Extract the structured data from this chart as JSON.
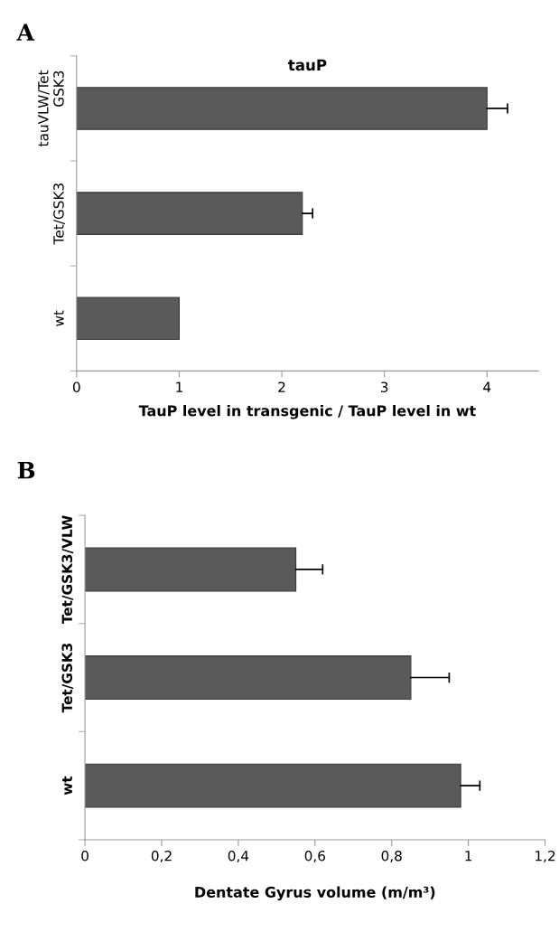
{
  "chart_data": [
    {
      "type": "bar",
      "orientation": "horizontal",
      "title": "tauP",
      "xlabel": "TauP level in transgenic / TauP level in wt",
      "annotations": [
        "A"
      ],
      "categories": [
        "tauVLW/Tet\nGSK3",
        "Tet/GSK3",
        "wt"
      ],
      "series": [
        {
          "color": "#5a5a5a",
          "values": [
            4.0,
            2.2,
            1.0
          ],
          "errors": [
            [
              4.0,
              4.2
            ],
            [
              2.2,
              2.3
            ],
            null
          ]
        }
      ],
      "xlim": [
        0,
        4.5
      ],
      "xticks": [
        0,
        1,
        2,
        3,
        4
      ],
      "grid": false,
      "legend": false
    },
    {
      "type": "bar",
      "orientation": "horizontal",
      "xlabel": "Dentate Gyrus volume (m/m³)",
      "annotations": [
        "B"
      ],
      "categories": [
        "Tet/GSK3/VLW",
        "Tet/GSK3",
        "wt"
      ],
      "series": [
        {
          "color": "#5a5a5a",
          "values": [
            0.55,
            0.85,
            0.98
          ],
          "errors": [
            [
              0.55,
              0.62
            ],
            [
              0.85,
              0.95
            ],
            [
              0.98,
              1.03
            ]
          ]
        }
      ],
      "xlim": [
        0,
        1.2
      ],
      "xticks": [
        0,
        {
          "value": 0.2,
          "label": "0,2"
        },
        {
          "value": 0.4,
          "label": "0,4"
        },
        {
          "value": 0.6,
          "label": "0,6"
        },
        {
          "value": 0.8,
          "label": "0,8"
        },
        1,
        {
          "value": 1.2,
          "label": "1,2"
        }
      ],
      "grid": false,
      "legend": false
    }
  ]
}
